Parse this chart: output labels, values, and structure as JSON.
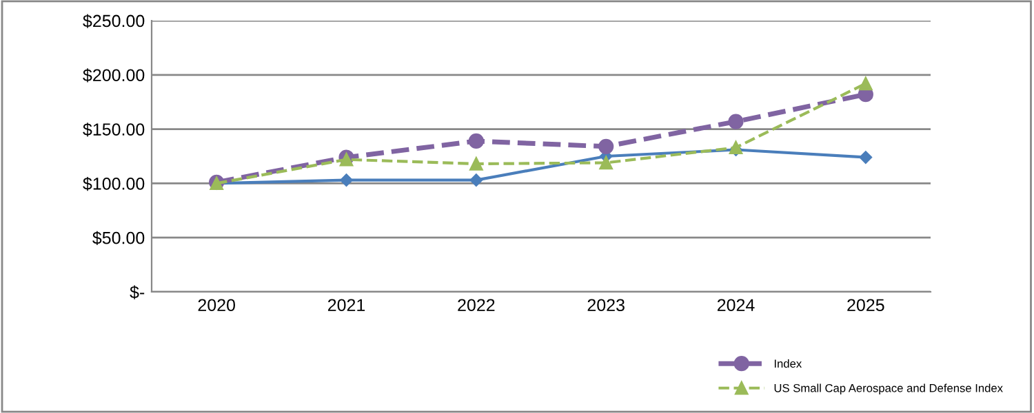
{
  "chart_data": {
    "type": "line",
    "categories": [
      "2020",
      "2021",
      "2022",
      "2023",
      "2024",
      "2025"
    ],
    "series": [
      {
        "color": "#4a7ebb",
        "values": [
          100,
          103,
          103,
          125,
          131,
          124
        ],
        "marker": "diamond",
        "line_style": "solid"
      },
      {
        "name": "Index",
        "color": "#8064a2",
        "values": [
          101,
          124,
          139,
          134,
          157,
          182
        ],
        "marker": "circle",
        "line_style": "dashed"
      },
      {
        "name": "US Small Cap Aerospace and Defense Index",
        "color": "#9bbb59",
        "values": [
          100,
          122,
          118,
          119,
          133,
          192
        ],
        "marker": "triangle",
        "line_style": "dashed"
      }
    ],
    "ylim": [
      0,
      250
    ],
    "yticks": [
      {
        "value": 0,
        "label": "$-"
      },
      {
        "value": 50,
        "label": "$50.00"
      },
      {
        "value": 100,
        "label": "$100.00"
      },
      {
        "value": 150,
        "label": "$150.00"
      },
      {
        "value": 200,
        "label": "$200.00"
      },
      {
        "value": 250,
        "label": "$250.00"
      }
    ],
    "grid": "y",
    "legend": "bottom right"
  }
}
